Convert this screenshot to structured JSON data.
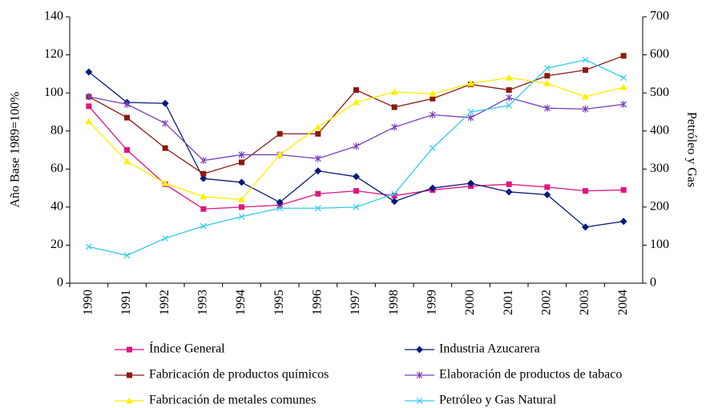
{
  "chart_data": {
    "type": "line",
    "y_label": "Año Base 1989=100%",
    "y2_label": "Petróleo y Gas",
    "categories": [
      "1990",
      "1991",
      "1992",
      "1993",
      "1994",
      "1995",
      "1996",
      "1997",
      "1998",
      "1999",
      "2000",
      "2001",
      "2002",
      "2003",
      "2004"
    ],
    "ylim": [
      0,
      140
    ],
    "yticks": [
      0,
      20,
      40,
      60,
      80,
      100,
      120,
      140
    ],
    "y2lim": [
      0,
      700
    ],
    "y2ticks": [
      0,
      100,
      200,
      300,
      400,
      500,
      600,
      700
    ],
    "grid": false,
    "series": [
      {
        "name": "Índice General",
        "color": "#e0157f",
        "marker": "square",
        "values": [
          93,
          70,
          52,
          39,
          40,
          41,
          47,
          48.5,
          46,
          49,
          51,
          52,
          50.5,
          48.5,
          49
        ]
      },
      {
        "name": "Industria Azucarera",
        "color": "#0a1a7a",
        "marker": "diamond",
        "values": [
          111,
          95,
          94.5,
          55,
          53,
          42.5,
          59,
          56,
          43,
          50,
          52.5,
          48,
          46.5,
          29.5,
          32.5
        ]
      },
      {
        "name": "Fabricación de productos químicos",
        "color": "#8b1a10",
        "marker": "square",
        "values": [
          98,
          87,
          71,
          57.5,
          63.5,
          78.5,
          78.5,
          101.5,
          92.5,
          97,
          104.5,
          101.5,
          109,
          112,
          119.5
        ]
      },
      {
        "name": "Elaboración de productos de tabaco",
        "color": "#7a3fbf",
        "marker": "star",
        "values": [
          98,
          94,
          84,
          64.5,
          67.5,
          67.5,
          65.5,
          72,
          82,
          88.5,
          87,
          97.5,
          92,
          91.5,
          94
        ]
      },
      {
        "name": "Fabricación de metales comunes",
        "color": "#ffee00",
        "marker": "triangle",
        "values": [
          85,
          64,
          52.5,
          45.5,
          44,
          67.5,
          82,
          95,
          100.5,
          99.5,
          105,
          108,
          105,
          98,
          103
        ]
      },
      {
        "name": "Petróleo y Gas Natural",
        "color": "#33ccee",
        "marker": "x",
        "axis": "y2",
        "values": [
          96,
          73,
          118,
          150,
          175,
          197,
          197,
          200,
          235,
          355,
          450,
          467,
          565,
          587,
          540
        ]
      }
    ]
  }
}
